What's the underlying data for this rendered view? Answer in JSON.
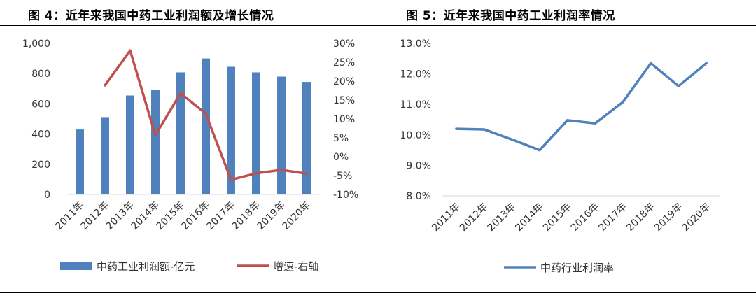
{
  "figures": [
    {
      "title": "图 4：近年来我国中药工业利润额及增长情况",
      "chart_data": {
        "type": "bar+line",
        "categories": [
          "2011年",
          "2012年",
          "2013年",
          "2014年",
          "2015年",
          "2016年",
          "2017年",
          "2018年",
          "2019年",
          "2020年"
        ],
        "series": [
          {
            "name": "中药工业利润额-亿元",
            "kind": "bar",
            "axis": "left",
            "color": "#4f81bd",
            "values": [
              430,
              512,
              655,
              692,
              808,
              900,
              845,
              808,
              780,
              745
            ]
          },
          {
            "name": "增速-右轴",
            "kind": "line",
            "axis": "right",
            "color": "#c0504d",
            "values": [
              null,
              18.9,
              28.1,
              5.7,
              16.8,
              11.4,
              -6.1,
              -4.4,
              -3.5,
              -4.5
            ]
          }
        ],
        "y_left": {
          "min": 0,
          "max": 1000,
          "ticks": [
            0,
            200,
            400,
            600,
            800,
            1000
          ],
          "tick_labels": [
            "0",
            "200",
            "400",
            "600",
            "800",
            "1,000"
          ]
        },
        "y_right": {
          "min": -10,
          "max": 30,
          "ticks": [
            -10,
            -5,
            0,
            5,
            10,
            15,
            20,
            25,
            30
          ],
          "tick_labels": [
            "-10%",
            "-5%",
            "0%",
            "5%",
            "10%",
            "15%",
            "20%",
            "25%",
            "30%"
          ]
        },
        "grid": false,
        "legend_position": "bottom"
      }
    },
    {
      "title": "图 5：近年来我国中药工业利润率情况",
      "chart_data": {
        "type": "line",
        "categories": [
          "2011年",
          "2012年",
          "2013年",
          "2014年",
          "2015年",
          "2016年",
          "2017年",
          "2018年",
          "2019年",
          "2020年"
        ],
        "series": [
          {
            "name": "中药行业利润率",
            "kind": "line",
            "axis": "left",
            "color": "#4f81bd",
            "values": [
              10.2,
              10.18,
              9.85,
              9.5,
              10.48,
              10.38,
              11.08,
              12.35,
              11.6,
              12.35
            ]
          }
        ],
        "y_left": {
          "min": 8,
          "max": 13,
          "ticks": [
            8,
            9,
            10,
            11,
            12,
            13
          ],
          "tick_labels": [
            "8.0%",
            "9.0%",
            "10.0%",
            "11.0%",
            "12.0%",
            "13.0%"
          ]
        },
        "grid": false,
        "legend_position": "bottom"
      }
    }
  ]
}
